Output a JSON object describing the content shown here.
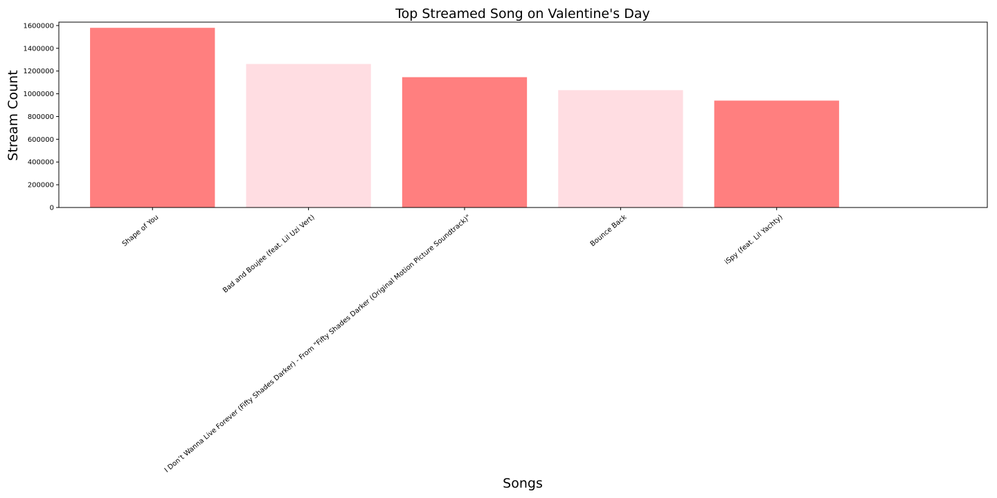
{
  "chart_data": {
    "type": "bar",
    "title": "Top Streamed Song on Valentine's Day",
    "xlabel": "Songs",
    "ylabel": "Stream Count",
    "categories": [
      "Shape of You",
      "Bad and Boujee (feat. Lil Uzi Vert)",
      "I Don’t Wanna Live Forever (Fifty Shades Darker) - From \"Fifty Shades Darker (Original Motion Picture Soundtrack)\"",
      "Bounce Back",
      "iSpy (feat. Lil Yachty)"
    ],
    "values": [
      1580000,
      1262000,
      1146000,
      1032000,
      940000
    ],
    "bar_colors": [
      "#ff7f7f",
      "#ffdde2",
      "#ff7f7f",
      "#ffdde2",
      "#ff7f7f"
    ],
    "ylim": [
      0,
      1630000
    ],
    "yticks": [
      0,
      200000,
      400000,
      600000,
      800000,
      1000000,
      1200000,
      1400000,
      1600000
    ],
    "ytick_labels": [
      "0",
      "200000",
      "400000",
      "600000",
      "800000",
      "1000000",
      "1200000",
      "1400000",
      "1600000"
    ],
    "grid": false,
    "legend": "none"
  }
}
